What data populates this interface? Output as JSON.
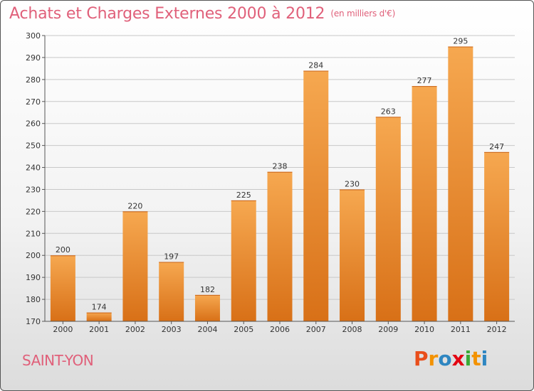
{
  "header": {
    "title": "Achats et Charges Externes 2000 à 2012",
    "unit": "(en milliers d'€)"
  },
  "footer": {
    "city": "SAINT-YON",
    "logo": "Proxiti",
    "logo_colors": [
      "#e94e1b",
      "#f39200",
      "#2e86c1",
      "#e30613",
      "#3aaa35",
      "#f39200",
      "#2e86c1"
    ]
  },
  "colors": {
    "bar_top": "#f6a850",
    "bar_bottom": "#d87017",
    "grid": "#c8c8c8",
    "axis": "#555555",
    "title": "#e0607a"
  },
  "chart_data": {
    "type": "bar",
    "categories": [
      "2000",
      "2001",
      "2002",
      "2003",
      "2004",
      "2005",
      "2006",
      "2007",
      "2008",
      "2009",
      "2010",
      "2011",
      "2012"
    ],
    "values": [
      200,
      174,
      220,
      197,
      182,
      225,
      238,
      284,
      230,
      263,
      277,
      295,
      247
    ],
    "ylim": [
      170,
      300
    ],
    "yticks": [
      170,
      180,
      190,
      200,
      210,
      220,
      230,
      240,
      250,
      260,
      270,
      280,
      290,
      300
    ],
    "grid": true,
    "data_labels": true
  }
}
